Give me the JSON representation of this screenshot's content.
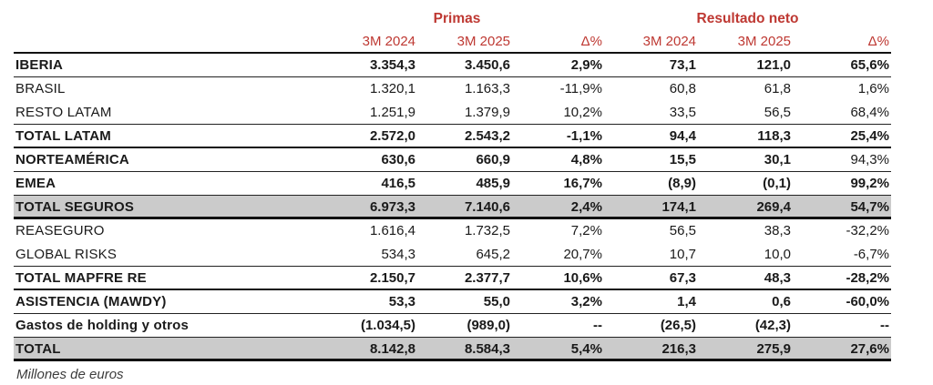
{
  "colors": {
    "accent_red": "#BE3832",
    "row_highlight": "#CBCBCB",
    "border_dark": "#111111"
  },
  "table": {
    "group_headers": {
      "primas": "Primas",
      "resultado": "Resultado neto"
    },
    "column_headers": [
      "3M 2024",
      "3M 2025",
      "Δ%",
      "3M 2024",
      "3M 2025",
      "Δ%"
    ],
    "rows": [
      {
        "label": "IBERIA",
        "values": [
          "3.354,3",
          "3.450,6",
          "2,9%",
          "73,1",
          "121,0",
          "65,6%"
        ],
        "bold": true,
        "highlight": false,
        "border": "thin"
      },
      {
        "label": "BRASIL",
        "values": [
          "1.320,1",
          "1.163,3",
          "-11,9%",
          "60,8",
          "61,8",
          "1,6%"
        ],
        "bold": false,
        "highlight": false,
        "border": "none"
      },
      {
        "label": "RESTO LATAM",
        "values": [
          "1.251,9",
          "1.379,9",
          "10,2%",
          "33,5",
          "56,5",
          "68,4%"
        ],
        "bold": false,
        "highlight": false,
        "border": "thin"
      },
      {
        "label": "TOTAL LATAM",
        "values": [
          "2.572,0",
          "2.543,2",
          "-1,1%",
          "94,4",
          "118,3",
          "25,4%"
        ],
        "bold": true,
        "highlight": false,
        "border": "medium"
      },
      {
        "label": "NORTEAMÉRICA",
        "values": [
          "630,6",
          "660,9",
          "4,8%",
          "15,5",
          "30,1",
          "94,3%"
        ],
        "bold": true,
        "highlight": false,
        "border": "thin",
        "last_value_regular": true
      },
      {
        "label": "EMEA",
        "values": [
          "416,5",
          "485,9",
          "16,7%",
          "(8,9)",
          "(0,1)",
          "99,2%"
        ],
        "bold": true,
        "highlight": false,
        "border": "thin"
      },
      {
        "label": "TOTAL SEGUROS",
        "values": [
          "6.973,3",
          "7.140,6",
          "2,4%",
          "174,1",
          "269,4",
          "54,7%"
        ],
        "bold": true,
        "highlight": true,
        "border": "thick"
      },
      {
        "label": "REASEGURO",
        "values": [
          "1.616,4",
          "1.732,5",
          "7,2%",
          "56,5",
          "38,3",
          "-32,2%"
        ],
        "bold": false,
        "highlight": false,
        "border": "none"
      },
      {
        "label": "GLOBAL RISKS",
        "values": [
          "534,3",
          "645,2",
          "20,7%",
          "10,7",
          "10,0",
          "-6,7%"
        ],
        "bold": false,
        "highlight": false,
        "border": "thin"
      },
      {
        "label": "TOTAL MAPFRE RE",
        "values": [
          "2.150,7",
          "2.377,7",
          "10,6%",
          "67,3",
          "48,3",
          "-28,2%"
        ],
        "bold": true,
        "highlight": false,
        "border": "medium"
      },
      {
        "label": "ASISTENCIA (MAWDY)",
        "values": [
          "53,3",
          "55,0",
          "3,2%",
          "1,4",
          "0,6",
          "-60,0%"
        ],
        "bold": true,
        "highlight": false,
        "border": "thin"
      },
      {
        "label": "Gastos de holding y otros",
        "values": [
          "(1.034,5)",
          "(989,0)",
          "--",
          "(26,5)",
          "(42,3)",
          "--"
        ],
        "bold": true,
        "highlight": false,
        "border": "thin"
      },
      {
        "label": "TOTAL",
        "values": [
          "8.142,8",
          "8.584,3",
          "5,4%",
          "216,3",
          "275,9",
          "27,6%"
        ],
        "bold": true,
        "highlight": true,
        "border": "thick"
      }
    ]
  },
  "footer": {
    "unit_note": "Millones de euros"
  }
}
